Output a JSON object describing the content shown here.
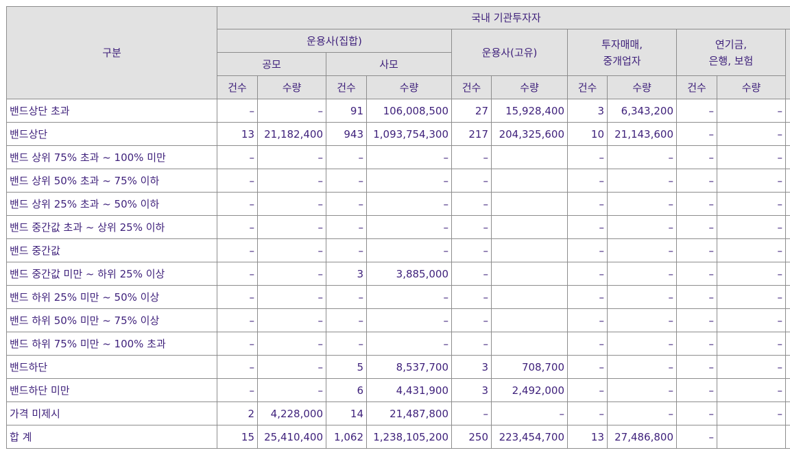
{
  "header": {
    "category": "구분",
    "domestic": "국내 기관투자자",
    "am_collective": "운용사(집합)",
    "public": "공모",
    "private": "사모",
    "am_proprietary": "운용사(고유)",
    "dealer_line1": "투자매매,",
    "dealer_line2": "중개업자",
    "pension_line1": "연기금,",
    "pension_line2": "은행, 보험",
    "count": "건수",
    "qty": "수량"
  },
  "rows": [
    {
      "label": "밴드상단 초과",
      "c1": "–",
      "q1": "–",
      "c2": "91",
      "q2": "106,008,500",
      "c3": "27",
      "q3": "15,928,400",
      "c4": "3",
      "q4": "6,343,200",
      "c5": "–",
      "q5": "–"
    },
    {
      "label": "밴드상단",
      "c1": "13",
      "q1": "21,182,400",
      "c2": "943",
      "q2": "1,093,754,300",
      "c3": "217",
      "q3": "204,325,600",
      "c4": "10",
      "q4": "21,143,600",
      "c5": "–",
      "q5": "–"
    },
    {
      "label": "밴드 상위 75% 초과 ~ 100% 미만",
      "c1": "–",
      "q1": "–",
      "c2": "–",
      "q2": "–",
      "c3": "–",
      "q3": "",
      "c4": "–",
      "q4": "–",
      "c5": "–",
      "q5": "–"
    },
    {
      "label": "밴드 상위 50% 초과 ~ 75% 이하",
      "c1": "–",
      "q1": "–",
      "c2": "–",
      "q2": "–",
      "c3": "–",
      "q3": "",
      "c4": "–",
      "q4": "–",
      "c5": "–",
      "q5": "–"
    },
    {
      "label": "밴드 상위 25% 초과 ~ 50% 이하",
      "c1": "–",
      "q1": "–",
      "c2": "–",
      "q2": "–",
      "c3": "–",
      "q3": "",
      "c4": "–",
      "q4": "–",
      "c5": "–",
      "q5": "–"
    },
    {
      "label": "밴드 중간값 초과 ~ 상위 25% 이하",
      "c1": "–",
      "q1": "–",
      "c2": "–",
      "q2": "–",
      "c3": "–",
      "q3": "",
      "c4": "–",
      "q4": "–",
      "c5": "–",
      "q5": "–"
    },
    {
      "label": "밴드 중간값",
      "c1": "–",
      "q1": "–",
      "c2": "–",
      "q2": "–",
      "c3": "–",
      "q3": "",
      "c4": "–",
      "q4": "–",
      "c5": "–",
      "q5": "–"
    },
    {
      "label": "밴드 중간값 미만 ~ 하위 25% 이상",
      "c1": "–",
      "q1": "–",
      "c2": "3",
      "q2": "3,885,000",
      "c3": "–",
      "q3": "",
      "c4": "–",
      "q4": "–",
      "c5": "–",
      "q5": "–"
    },
    {
      "label": "밴드 하위 25% 미만 ~ 50% 이상",
      "c1": "–",
      "q1": "–",
      "c2": "–",
      "q2": "–",
      "c3": "–",
      "q3": "",
      "c4": "–",
      "q4": "–",
      "c5": "–",
      "q5": "–"
    },
    {
      "label": "밴드 하위 50% 미만 ~ 75% 이상",
      "c1": "–",
      "q1": "–",
      "c2": "–",
      "q2": "–",
      "c3": "–",
      "q3": "",
      "c4": "–",
      "q4": "–",
      "c5": "–",
      "q5": "–"
    },
    {
      "label": "밴드 하위 75% 미만 ~ 100% 초과",
      "c1": "–",
      "q1": "–",
      "c2": "–",
      "q2": "–",
      "c3": "–",
      "q3": "",
      "c4": "–",
      "q4": "–",
      "c5": "–",
      "q5": "–"
    },
    {
      "label": "밴드하단",
      "c1": "–",
      "q1": "–",
      "c2": "5",
      "q2": "8,537,700",
      "c3": "3",
      "q3": "708,700",
      "c4": "–",
      "q4": "–",
      "c5": "–",
      "q5": "–"
    },
    {
      "label": "밴드하단 미만",
      "c1": "–",
      "q1": "–",
      "c2": "6",
      "q2": "4,431,900",
      "c3": "3",
      "q3": "2,492,000",
      "c4": "–",
      "q4": "–",
      "c5": "–",
      "q5": "–"
    },
    {
      "label": "가격 미제시",
      "c1": "2",
      "q1": "4,228,000",
      "c2": "14",
      "q2": "21,487,800",
      "c3": "–",
      "q3": "–",
      "c4": "–",
      "q4": "–",
      "c5": "–",
      "q5": "–"
    },
    {
      "label": "합 계",
      "c1": "15",
      "q1": "25,410,400",
      "c2": "1,062",
      "q2": "1,238,105,200",
      "c3": "250",
      "q3": "223,454,700",
      "c4": "13",
      "q4": "27,486,800",
      "c5": "–",
      "q5": ""
    }
  ]
}
